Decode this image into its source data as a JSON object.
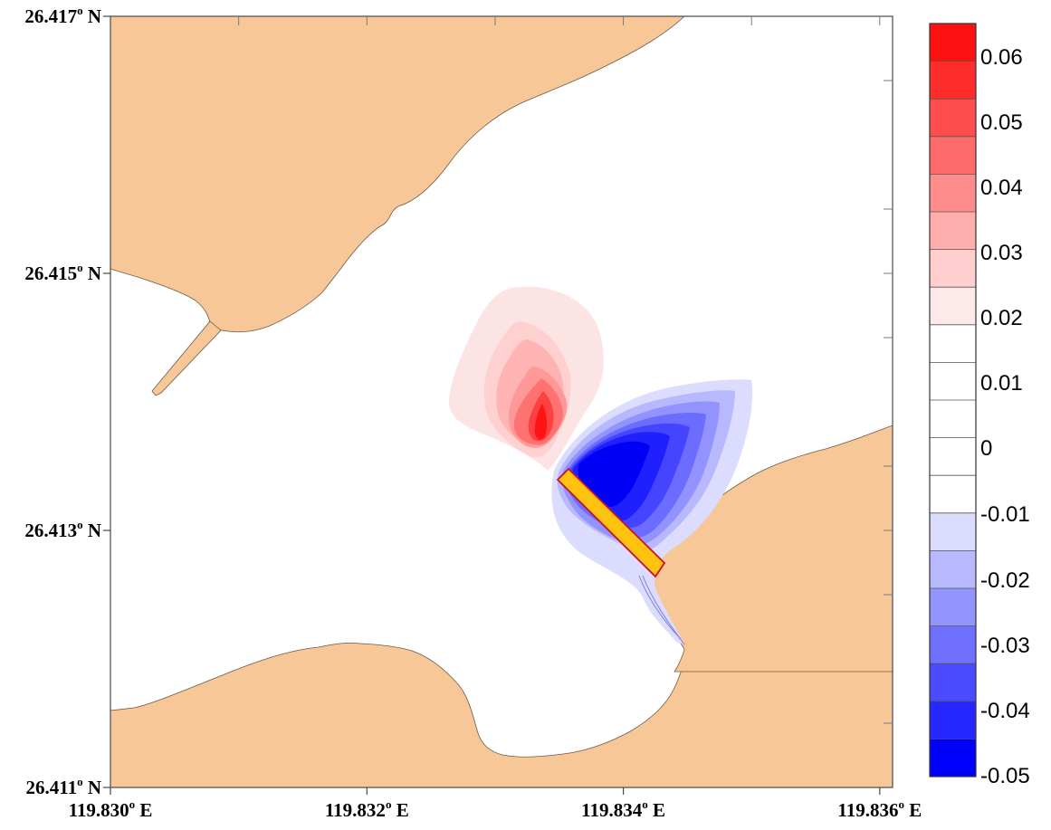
{
  "map": {
    "x_axis": {
      "ticks": [
        {
          "value": 119.83,
          "label": "119.830"
        },
        {
          "value": 119.832,
          "label": "119.832"
        },
        {
          "value": 119.834,
          "label": "119.834"
        },
        {
          "value": 119.836,
          "label": "119.836"
        }
      ],
      "suffix": "E",
      "degree_mark": "o"
    },
    "y_axis": {
      "ticks": [
        {
          "value": 26.417,
          "label": "26.417"
        },
        {
          "value": 26.415,
          "label": "26.415"
        },
        {
          "value": 26.413,
          "label": "26.413"
        },
        {
          "value": 26.411,
          "label": "26.411"
        }
      ],
      "suffix": "N",
      "degree_mark": "o"
    },
    "colors": {
      "land": "#f8c797",
      "structure": "#ffc20e",
      "structure_outline": "#c8102e",
      "background": "#ffffff"
    }
  },
  "colorbar": {
    "labels": [
      "0.06",
      "0.05",
      "0.04",
      "0.03",
      "0.02",
      "0.01",
      "0",
      "-0.01",
      "-0.02",
      "-0.03",
      "-0.04",
      "-0.05"
    ],
    "bands": [
      "#ff1010",
      "#ff2c2c",
      "#ff4c4c",
      "#ff6b6b",
      "#ff8c8c",
      "#ffaeae",
      "#ffcfcf",
      "#fde9e9",
      "#ffffff",
      "#ffffff",
      "#ffffff",
      "#ffffff",
      "#ffffff",
      "#dcdcff",
      "#b8b8ff",
      "#9494ff",
      "#7070ff",
      "#4a4aff",
      "#2626ff",
      "#0000ff"
    ]
  }
}
